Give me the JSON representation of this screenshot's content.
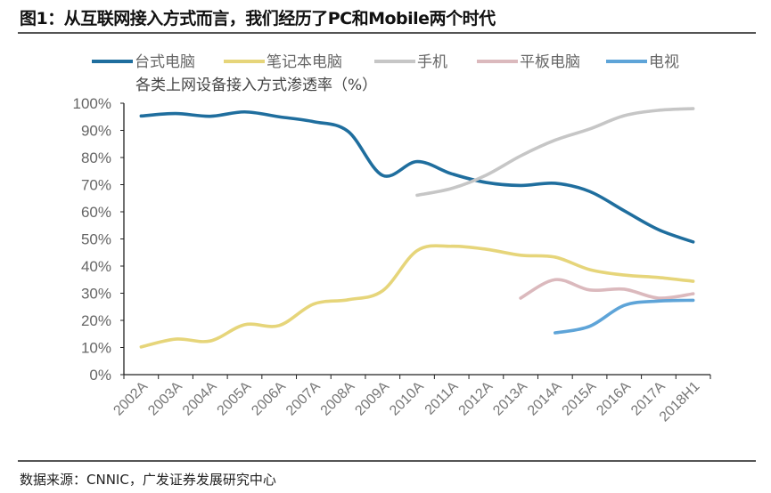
{
  "title": "图1：从互联网接入方式而言，我们经历了PC和Mobile两个时代",
  "source": "数据来源：CNNIC，广发证券发展研究中心",
  "chart_data": {
    "type": "line",
    "title": "各类上网设备接入方式渗透率（%）",
    "categories": [
      "2002A",
      "2003A",
      "2004A",
      "2005A",
      "2006A",
      "2007A",
      "2008A",
      "2009A",
      "2010A",
      "2011A",
      "2012A",
      "2013A",
      "2014A",
      "2015A",
      "2016A",
      "2017A",
      "2018H1"
    ],
    "ylim": [
      0,
      100
    ],
    "yticks": [
      "0%",
      "10%",
      "20%",
      "30%",
      "40%",
      "50%",
      "60%",
      "70%",
      "80%",
      "90%",
      "100%"
    ],
    "grid": false,
    "legend": "top",
    "series": [
      {
        "name": "台式电脑",
        "color": "#1f6e9e",
        "values": [
          95.3,
          96.2,
          95.2,
          96.8,
          95.0,
          93.2,
          89.6,
          73.4,
          78.5,
          74.0,
          70.8,
          69.7,
          70.5,
          67.5,
          60.4,
          53.4,
          48.9
        ]
      },
      {
        "name": "笔记本电脑",
        "color": "#e6d57a",
        "values": [
          10.2,
          13.1,
          12.4,
          18.4,
          18.1,
          26.0,
          27.6,
          30.9,
          45.7,
          47.3,
          46.2,
          44.0,
          43.3,
          38.7,
          36.7,
          35.8,
          34.4
        ]
      },
      {
        "name": "手机",
        "color": "#c6c6c6",
        "values": [
          null,
          null,
          null,
          null,
          null,
          null,
          null,
          null,
          66.1,
          68.6,
          73.5,
          80.6,
          86.4,
          90.5,
          95.4,
          97.4,
          98.0
        ]
      },
      {
        "name": "平板电脑",
        "color": "#dbb9bd",
        "values": [
          null,
          null,
          null,
          null,
          null,
          null,
          null,
          null,
          null,
          null,
          null,
          28.2,
          35.0,
          31.2,
          31.5,
          28.2,
          29.8
        ]
      },
      {
        "name": "电视",
        "color": "#5ea4d8",
        "values": [
          null,
          null,
          null,
          null,
          null,
          null,
          null,
          null,
          null,
          null,
          null,
          null,
          15.4,
          17.8,
          25.5,
          27.1,
          27.4
        ]
      }
    ]
  }
}
